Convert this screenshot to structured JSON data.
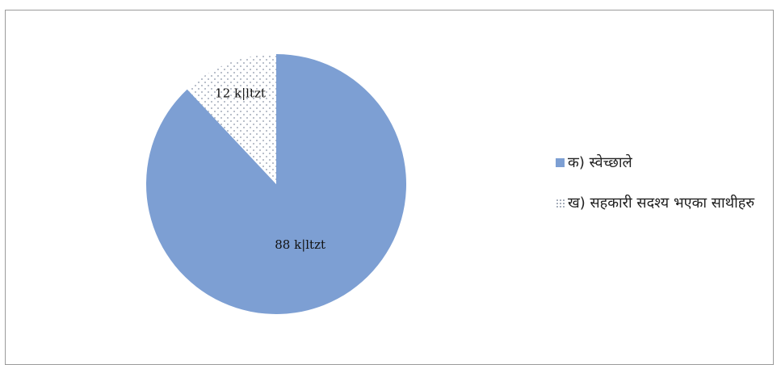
{
  "chart_data": {
    "type": "pie",
    "categories": [
      "क) स्वेच्छाले",
      "ख) सहकारी सदश्य भएका साथीहरु"
    ],
    "values": [
      88,
      12
    ],
    "data_labels": [
      "88 k|ltzt",
      "12 k|ltzt"
    ],
    "colors": [
      "#7d9fd3",
      "#ffffff"
    ],
    "slice_patterns": [
      "solid",
      "dotted"
    ],
    "legend_position": "right",
    "title": ""
  }
}
